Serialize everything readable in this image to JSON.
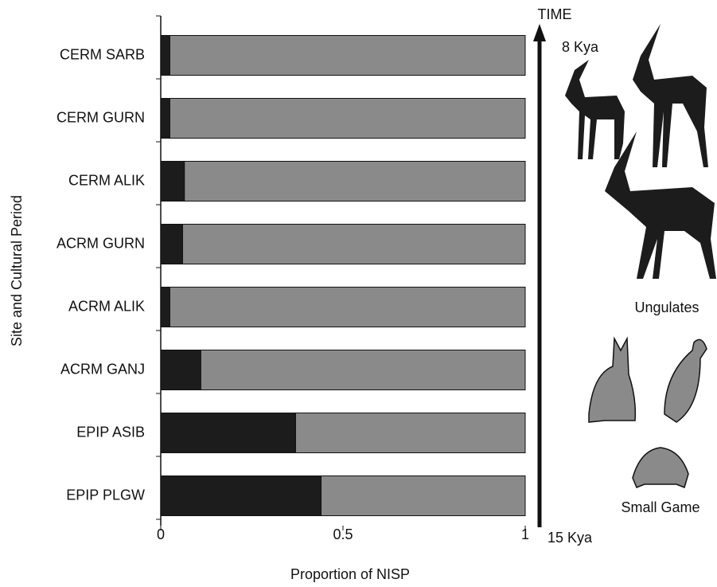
{
  "chart_data": {
    "type": "stacked-bar-horizontal",
    "categories": [
      "CERM SARB",
      "CERM GURN",
      "CERM ALIK",
      "ACRM GURN",
      "ACRM ALIK",
      "ACRM GANJ",
      "EPIP ASIB",
      "EPIP PLGW"
    ],
    "series": [
      {
        "name": "Ungulates",
        "color": "#1c1c1c",
        "values": [
          0.025,
          0.025,
          0.065,
          0.06,
          0.025,
          0.11,
          0.37,
          0.44
        ]
      },
      {
        "name": "Small Game",
        "color": "#8a8a8a",
        "values": [
          0.975,
          0.975,
          0.935,
          0.94,
          0.975,
          0.89,
          0.63,
          0.56
        ]
      }
    ],
    "xlim": [
      0,
      1
    ],
    "xticks": [
      0,
      0.5,
      1
    ],
    "x_label": "Proportion of NISP",
    "y_label": "Site and Cultural Period",
    "annotations": {
      "time": "TIME",
      "top": "8 Kya",
      "bottom": "15 Kya"
    }
  }
}
